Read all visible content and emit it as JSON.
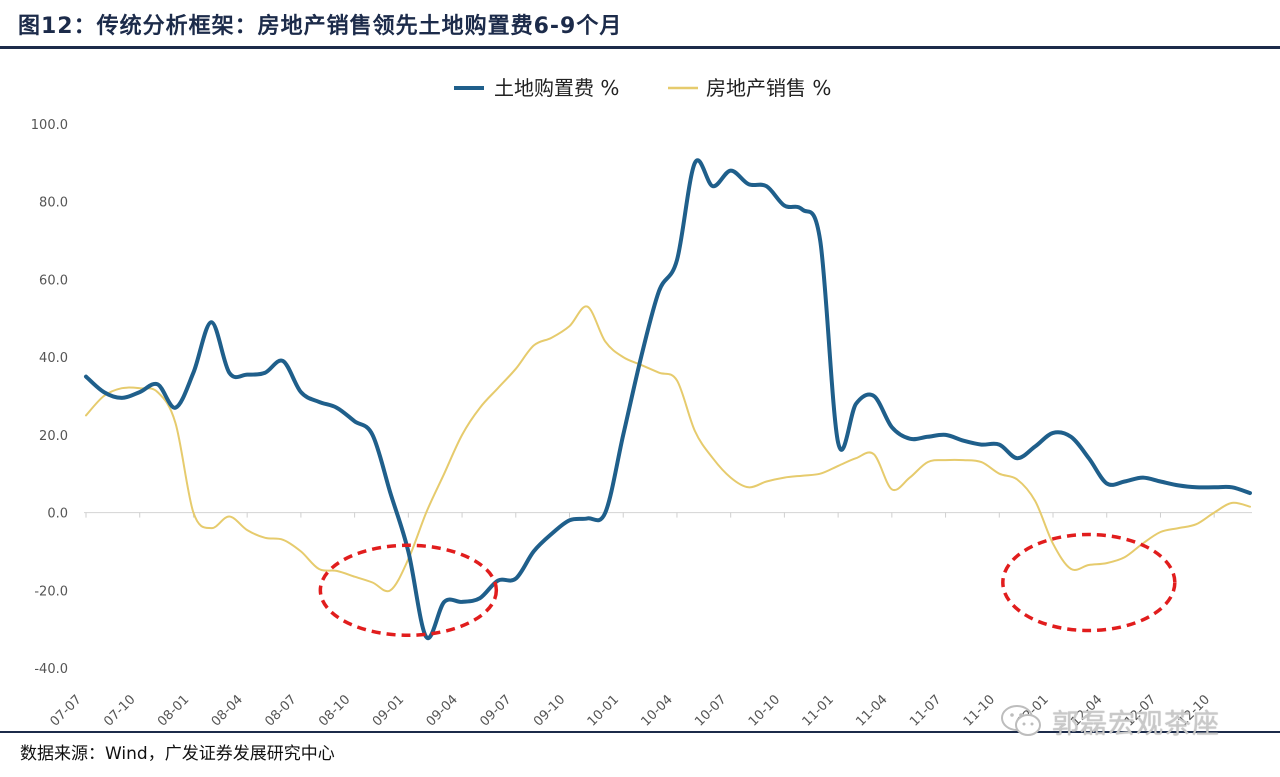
{
  "figure": {
    "title": "图12：传统分析框架：房地产销售领先土地购置费6-9个月",
    "source": "数据来源：Wind，广发证券发展研究中心",
    "watermark": "郭磊宏观茶座",
    "watermark_icon": "wechat-icon"
  },
  "chart_data": {
    "type": "line",
    "title": "",
    "xlabel": "",
    "ylabel": "",
    "ylim": [
      -40,
      100
    ],
    "yticks": [
      100,
      80,
      60,
      40,
      20,
      0,
      -20,
      -40
    ],
    "grid": false,
    "legend_position": "top-center",
    "x_categories": [
      "07-07",
      "07-10",
      "08-01",
      "08-04",
      "08-07",
      "08-10",
      "09-01",
      "09-04",
      "09-07",
      "09-10",
      "10-01",
      "10-04",
      "10-07",
      "10-10",
      "11-01",
      "11-04",
      "11-07",
      "11-10",
      "12-01",
      "12-04",
      "12-07",
      "12-10"
    ],
    "series": [
      {
        "name": "土地购置费 %",
        "color": "#1f5f8b",
        "points": [
          [
            "2007-07",
            35
          ],
          [
            "2007-08",
            31
          ],
          [
            "2007-09",
            29.5
          ],
          [
            "2007-10",
            31
          ],
          [
            "2007-11",
            33
          ],
          [
            "2007-12",
            27
          ],
          [
            "2008-01",
            36
          ],
          [
            "2008-02",
            49
          ],
          [
            "2008-03",
            36
          ],
          [
            "2008-04",
            35.5
          ],
          [
            "2008-05",
            36
          ],
          [
            "2008-06",
            39
          ],
          [
            "2008-07",
            31
          ],
          [
            "2008-08",
            28.5
          ],
          [
            "2008-09",
            27
          ],
          [
            "2008-10",
            23.5
          ],
          [
            "2008-11",
            20
          ],
          [
            "2008-12",
            5
          ],
          [
            "2009-01",
            -10
          ],
          [
            "2009-02",
            -32
          ],
          [
            "2009-03",
            -23
          ],
          [
            "2009-04",
            -23
          ],
          [
            "2009-05",
            -22
          ],
          [
            "2009-06",
            -17.5
          ],
          [
            "2009-07",
            -17
          ],
          [
            "2009-08",
            -10
          ],
          [
            "2009-09",
            -5.5
          ],
          [
            "2009-10",
            -2
          ],
          [
            "2009-11",
            -1.5
          ],
          [
            "2009-12",
            0
          ],
          [
            "2010-01",
            20
          ],
          [
            "2010-02",
            40
          ],
          [
            "2010-03",
            57
          ],
          [
            "2010-04",
            65
          ],
          [
            "2010-05",
            90
          ],
          [
            "2010-06",
            84
          ],
          [
            "2010-07",
            88
          ],
          [
            "2010-08",
            84.5
          ],
          [
            "2010-09",
            84
          ],
          [
            "2010-10",
            79
          ],
          [
            "2010-11",
            78
          ],
          [
            "2010-12",
            70
          ],
          [
            "2011-01",
            18
          ],
          [
            "2011-02",
            28
          ],
          [
            "2011-03",
            30
          ],
          [
            "2011-04",
            22
          ],
          [
            "2011-05",
            19
          ],
          [
            "2011-06",
            19.5
          ],
          [
            "2011-07",
            20
          ],
          [
            "2011-08",
            18.5
          ],
          [
            "2011-09",
            17.5
          ],
          [
            "2011-10",
            17.5
          ],
          [
            "2011-11",
            14
          ],
          [
            "2011-12",
            17
          ],
          [
            "2012-01",
            20.5
          ],
          [
            "2012-02",
            19.5
          ],
          [
            "2012-03",
            14
          ],
          [
            "2012-04",
            7.5
          ],
          [
            "2012-05",
            8
          ],
          [
            "2012-06",
            9
          ],
          [
            "2012-07",
            8
          ],
          [
            "2012-08",
            7
          ],
          [
            "2012-09",
            6.5
          ],
          [
            "2012-10",
            6.5
          ],
          [
            "2012-11",
            6.5
          ],
          [
            "2012-12",
            5
          ]
        ]
      },
      {
        "name": "房地产销售 %",
        "color": "#e6cb6d",
        "points": [
          [
            "2007-07",
            25
          ],
          [
            "2007-08",
            30
          ],
          [
            "2007-09",
            32
          ],
          [
            "2007-10",
            32
          ],
          [
            "2007-11",
            31
          ],
          [
            "2007-12",
            23
          ],
          [
            "2008-01",
            0
          ],
          [
            "2008-02",
            -4
          ],
          [
            "2008-03",
            -1
          ],
          [
            "2008-04",
            -4.5
          ],
          [
            "2008-05",
            -6.5
          ],
          [
            "2008-06",
            -7
          ],
          [
            "2008-07",
            -10
          ],
          [
            "2008-08",
            -14.5
          ],
          [
            "2008-09",
            -15
          ],
          [
            "2008-10",
            -16.5
          ],
          [
            "2008-11",
            -18
          ],
          [
            "2008-12",
            -20
          ],
          [
            "2009-01",
            -12
          ],
          [
            "2009-02",
            0
          ],
          [
            "2009-03",
            10
          ],
          [
            "2009-04",
            20
          ],
          [
            "2009-05",
            27
          ],
          [
            "2009-06",
            32
          ],
          [
            "2009-07",
            37
          ],
          [
            "2009-08",
            43
          ],
          [
            "2009-09",
            45
          ],
          [
            "2009-10",
            48
          ],
          [
            "2009-11",
            53
          ],
          [
            "2009-12",
            44
          ],
          [
            "2010-01",
            40
          ],
          [
            "2010-02",
            38
          ],
          [
            "2010-03",
            36
          ],
          [
            "2010-04",
            34
          ],
          [
            "2010-05",
            21
          ],
          [
            "2010-06",
            14
          ],
          [
            "2010-07",
            9
          ],
          [
            "2010-08",
            6.5
          ],
          [
            "2010-09",
            8
          ],
          [
            "2010-10",
            9
          ],
          [
            "2010-11",
            9.5
          ],
          [
            "2010-12",
            10
          ],
          [
            "2011-01",
            12
          ],
          [
            "2011-02",
            14
          ],
          [
            "2011-03",
            15
          ],
          [
            "2011-04",
            6
          ],
          [
            "2011-05",
            9
          ],
          [
            "2011-06",
            13
          ],
          [
            "2011-07",
            13.5
          ],
          [
            "2011-08",
            13.5
          ],
          [
            "2011-09",
            13
          ],
          [
            "2011-10",
            10
          ],
          [
            "2011-11",
            8.5
          ],
          [
            "2011-12",
            3
          ],
          [
            "2012-01",
            -8
          ],
          [
            "2012-02",
            -14.5
          ],
          [
            "2012-03",
            -13.5
          ],
          [
            "2012-04",
            -13
          ],
          [
            "2012-05",
            -11.5
          ],
          [
            "2012-06",
            -8
          ],
          [
            "2012-07",
            -5
          ],
          [
            "2012-08",
            -4
          ],
          [
            "2012-09",
            -3
          ],
          [
            "2012-10",
            0
          ],
          [
            "2012-11",
            2.5
          ],
          [
            "2012-12",
            1.5
          ]
        ]
      }
    ],
    "annotations": [
      {
        "type": "dashed-ellipse",
        "color": "#e11d1d",
        "around_x": "2009-01",
        "around_y": -20
      },
      {
        "type": "dashed-ellipse",
        "color": "#e11d1d",
        "around_x": "2012-03",
        "around_y": -18
      }
    ]
  }
}
